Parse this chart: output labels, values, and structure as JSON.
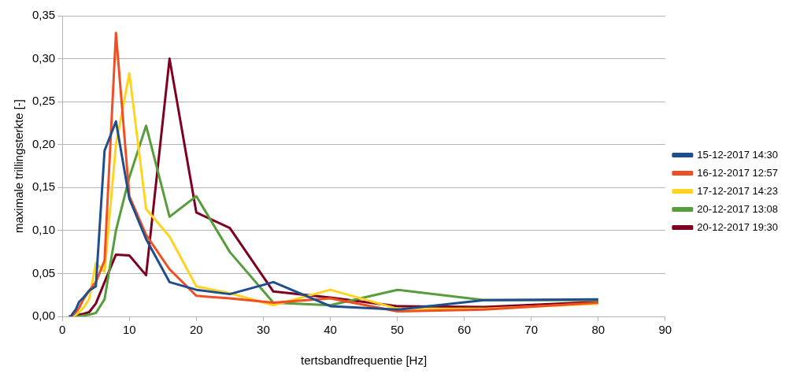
{
  "chart_data": {
    "type": "line",
    "xlabel": "tertsbandfrequentie [Hz]",
    "ylabel": "maximale trillingsterkte [-]",
    "x": [
      1,
      1.25,
      1.6,
      2,
      2.5,
      3.15,
      4,
      5,
      6.3,
      8,
      10,
      12.5,
      16,
      20,
      25,
      31.5,
      40,
      50,
      63,
      80
    ],
    "xlim": [
      0,
      90
    ],
    "xticks": [
      0,
      10,
      20,
      30,
      40,
      50,
      60,
      70,
      80,
      90
    ],
    "ylim": [
      0,
      0.35
    ],
    "yticks": [
      {
        "value": 0,
        "label": "0,00"
      },
      {
        "value": 0.05,
        "label": "0,05"
      },
      {
        "value": 0.1,
        "label": "0,10"
      },
      {
        "value": 0.15,
        "label": "0,15"
      },
      {
        "value": 0.2,
        "label": "0,20"
      },
      {
        "value": 0.25,
        "label": "0,25"
      },
      {
        "value": 0.3,
        "label": "0,30"
      },
      {
        "value": 0.35,
        "label": "0,35"
      }
    ],
    "grid": "y",
    "legend": "right",
    "marker": "none",
    "line_style": "solid",
    "series": [
      {
        "name": "15-12-2017 14:30",
        "color": "#1f4e8c",
        "values": [
          0,
          0,
          0.004,
          0.008,
          0.017,
          0.022,
          0.03,
          0.035,
          0.193,
          0.227,
          0.137,
          0.09,
          0.04,
          0.031,
          0.026,
          0.04,
          0.012,
          0.008,
          0.019,
          0.02
        ]
      },
      {
        "name": "16-12-2017 12:57",
        "color": "#f04e23",
        "values": [
          0,
          0,
          0.002,
          0.005,
          0.01,
          0.02,
          0.03,
          0.04,
          0.065,
          0.33,
          0.14,
          0.095,
          0.055,
          0.024,
          0.021,
          0.016,
          0.021,
          0.006,
          0.008,
          0.016
        ]
      },
      {
        "name": "17-12-2017 14:23",
        "color": "#ffd320",
        "values": [
          0,
          0,
          0,
          0.002,
          0.005,
          0.01,
          0.02,
          0.062,
          0.052,
          0.2,
          0.283,
          0.125,
          0.093,
          0.035,
          0.027,
          0.013,
          0.031,
          0.009,
          0.009,
          0.015
        ]
      },
      {
        "name": "20-12-2017 13:08",
        "color": "#579d3c",
        "values": [
          0,
          0,
          0,
          0,
          0,
          0.001,
          0.002,
          0.004,
          0.02,
          0.1,
          0.162,
          0.222,
          0.116,
          0.14,
          0.075,
          0.016,
          0.013,
          0.031,
          0.019,
          0.019
        ]
      },
      {
        "name": "20-12-2017 19:30",
        "color": "#7e0021",
        "values": [
          0,
          0,
          0,
          0.001,
          0.002,
          0.003,
          0.005,
          0.015,
          0.04,
          0.072,
          0.071,
          0.048,
          0.3,
          0.121,
          0.103,
          0.029,
          0.022,
          0.012,
          0.011,
          0.017
        ]
      }
    ]
  }
}
